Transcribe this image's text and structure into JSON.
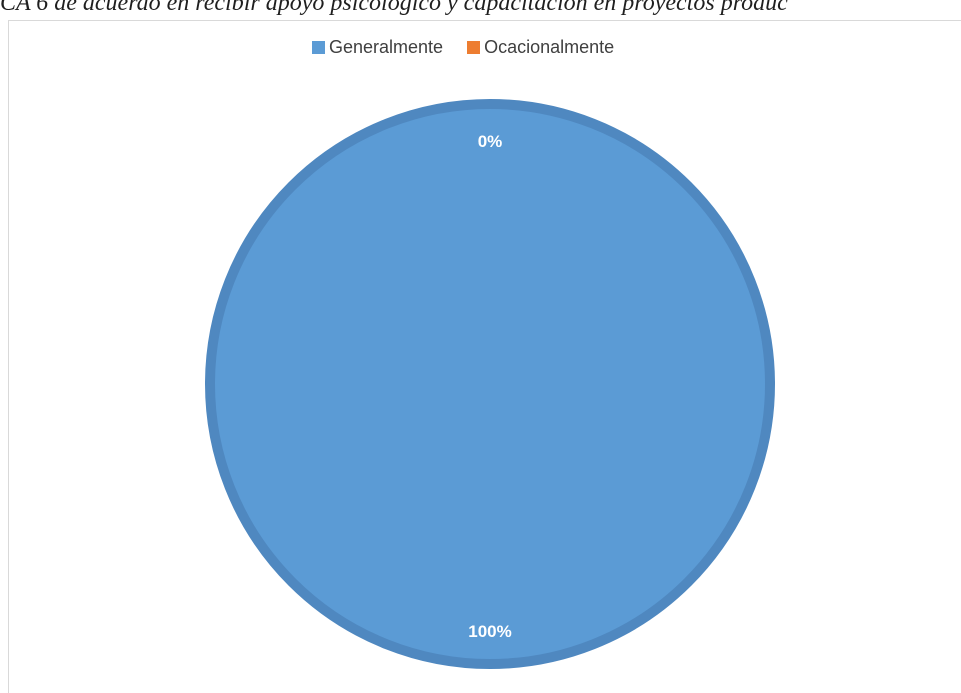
{
  "chart_data": {
    "type": "pie",
    "title": "CA 6 de acuerdo en recibir apoyo psicológico y capacitación en proyectos produc",
    "categories": [
      "Generalmente",
      "Ocacionalmente"
    ],
    "values": [
      100,
      0
    ],
    "data_labels": [
      "100%",
      "0%"
    ],
    "colors": [
      "#5b9bd5",
      "#ed7d31"
    ],
    "slice_border_color": "#4f88c0",
    "legend_position": "top"
  }
}
